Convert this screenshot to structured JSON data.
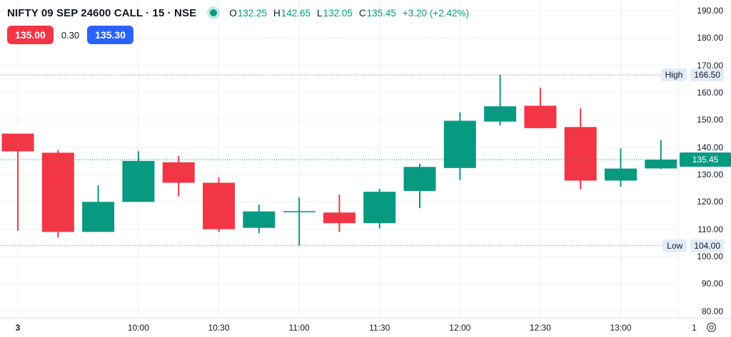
{
  "header": {
    "title": "NIFTY 09 SEP 24600 CALL · 15 · NSE",
    "ohlc": {
      "o_label": "O",
      "o_value": "132.25",
      "h_label": "H",
      "h_value": "142.65",
      "l_label": "L",
      "l_value": "132.05",
      "c_label": "C",
      "c_value": "135.45",
      "change": "+3.20 (+2.42%)"
    },
    "bid": "135.00",
    "spread": "0.30",
    "ask": "135.30"
  },
  "axis_corner": {
    "label": "1"
  },
  "colors": {
    "up": "#089981",
    "down": "#F23645",
    "bid_badge": "#F23645",
    "ask_badge": "#2962FF",
    "last_price_badge": "#089981",
    "marker_bg": "#E2ECF9",
    "grid": "#EEF1F6",
    "separator": "#E0E3EB",
    "axis_text": "#131722",
    "hl_dotted": "#787B86",
    "status_dot": "#089981"
  },
  "chart_data": {
    "type": "candlestick",
    "title": "NIFTY 09 SEP 24600 CALL",
    "exchange": "NSE",
    "interval_minutes": 15,
    "y_axis": {
      "min": 80,
      "max": 190,
      "tick_step": 10,
      "ticks": [
        190,
        180,
        170,
        160,
        150,
        140,
        130,
        120,
        110,
        100,
        90,
        80
      ]
    },
    "x_axis": {
      "ticks": [
        {
          "label": "3",
          "candle_index": 0,
          "bold": true
        },
        {
          "label": "10:00",
          "candle_index": 3
        },
        {
          "label": "10:30",
          "candle_index": 5
        },
        {
          "label": "11:00",
          "candle_index": 7
        },
        {
          "label": "11:30",
          "candle_index": 9
        },
        {
          "label": "12:00",
          "candle_index": 11
        },
        {
          "label": "12:30",
          "candle_index": 13
        },
        {
          "label": "13:00",
          "candle_index": 15
        }
      ]
    },
    "session_high": {
      "label": "High",
      "value": 166.5,
      "value_text": "166.50"
    },
    "session_low": {
      "label": "Low",
      "value": 104.0,
      "value_text": "104.00"
    },
    "last_price": 135.45,
    "last_price_text": "135.45",
    "candles": [
      {
        "time": "09:15",
        "o": 145.0,
        "h": 145.0,
        "l": 109.5,
        "c": 138.5
      },
      {
        "time": "09:30",
        "o": 138.0,
        "h": 139.0,
        "l": 107.0,
        "c": 109.0
      },
      {
        "time": "09:45",
        "o": 109.0,
        "h": 126.0,
        "l": 109.0,
        "c": 120.0
      },
      {
        "time": "10:00",
        "o": 120.0,
        "h": 138.5,
        "l": 120.0,
        "c": 135.0
      },
      {
        "time": "10:15",
        "o": 134.5,
        "h": 136.8,
        "l": 122.0,
        "c": 127.0
      },
      {
        "time": "10:30",
        "o": 127.0,
        "h": 129.0,
        "l": 109.0,
        "c": 110.0
      },
      {
        "time": "10:45",
        "o": 110.5,
        "h": 119.0,
        "l": 108.5,
        "c": 116.5
      },
      {
        "time": "11:00",
        "o": 116.4,
        "h": 121.7,
        "l": 104.0,
        "c": 116.6
      },
      {
        "time": "11:15",
        "o": 116.1,
        "h": 122.6,
        "l": 109.0,
        "c": 112.2
      },
      {
        "time": "11:30",
        "o": 112.2,
        "h": 124.8,
        "l": 110.3,
        "c": 123.7
      },
      {
        "time": "11:45",
        "o": 124.0,
        "h": 134.0,
        "l": 117.7,
        "c": 132.8
      },
      {
        "time": "12:00",
        "o": 132.4,
        "h": 152.8,
        "l": 128.0,
        "c": 149.7
      },
      {
        "time": "12:15",
        "o": 149.4,
        "h": 166.5,
        "l": 148.0,
        "c": 155.0
      },
      {
        "time": "12:30",
        "o": 155.2,
        "h": 161.8,
        "l": 147.0,
        "c": 147.0
      },
      {
        "time": "12:45",
        "o": 147.4,
        "h": 154.2,
        "l": 124.6,
        "c": 127.8
      },
      {
        "time": "13:00",
        "o": 127.8,
        "h": 139.6,
        "l": 125.5,
        "c": 132.2
      },
      {
        "time": "13:15",
        "o": 132.25,
        "h": 142.65,
        "l": 132.05,
        "c": 135.45
      }
    ]
  }
}
